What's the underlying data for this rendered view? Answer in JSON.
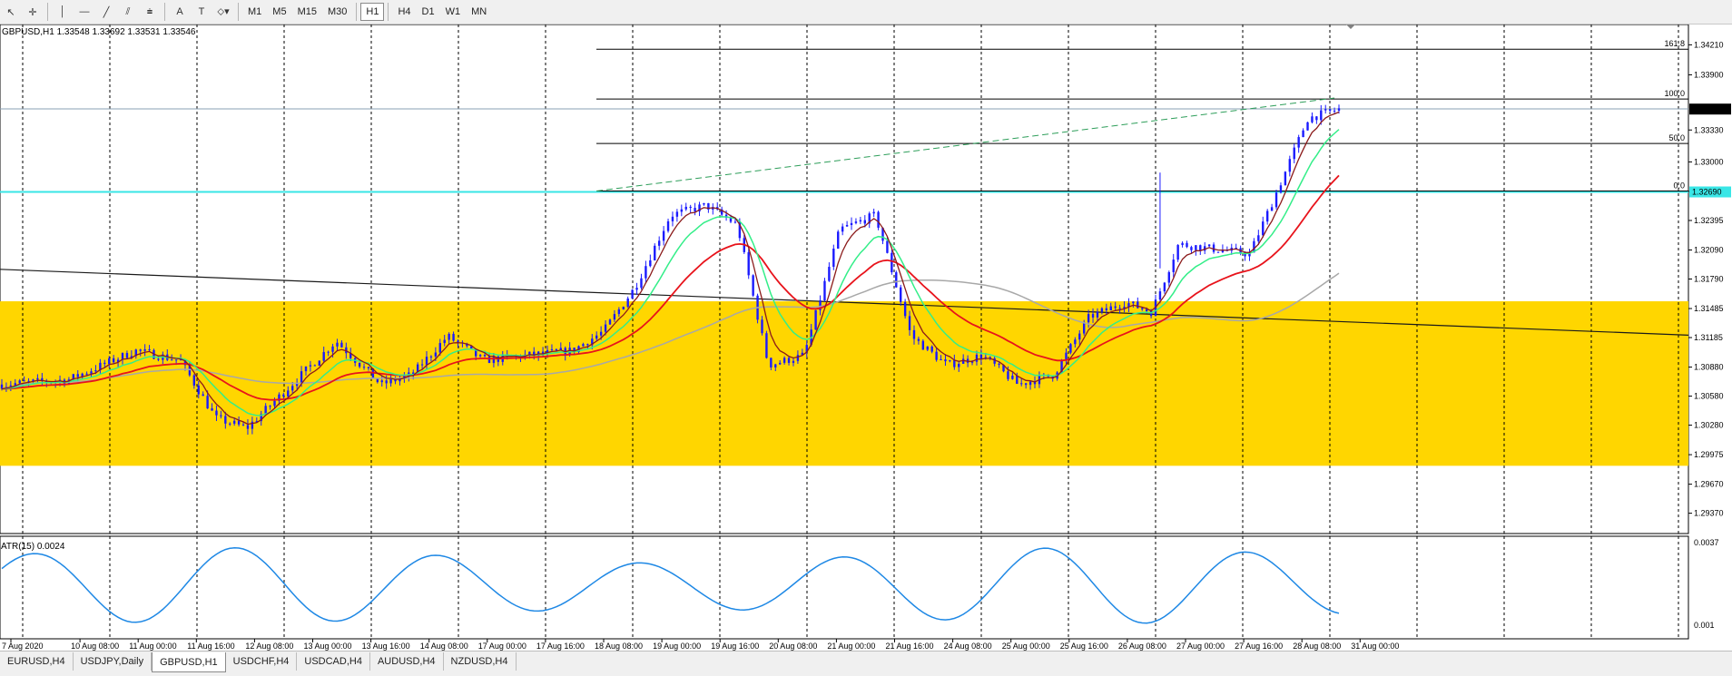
{
  "toolbar": {
    "tools": [
      {
        "name": "cursor-icon",
        "glyph": "↖"
      },
      {
        "name": "crosshair-icon",
        "glyph": "✛"
      },
      {
        "name": "vertical-line-icon",
        "glyph": "│"
      },
      {
        "name": "horizontal-line-icon",
        "glyph": "—"
      },
      {
        "name": "trendline-icon",
        "glyph": "╱"
      },
      {
        "name": "channel-icon",
        "glyph": "⫽"
      },
      {
        "name": "fibonacci-icon",
        "glyph": "⩧"
      },
      {
        "name": "text-icon",
        "glyph": "A"
      },
      {
        "name": "text-label-icon",
        "glyph": "T"
      },
      {
        "name": "shapes-icon",
        "glyph": "⬦▾"
      }
    ],
    "timeframes": [
      "M1",
      "M5",
      "M15",
      "M30",
      "H1",
      "H4",
      "D1",
      "W1",
      "MN"
    ],
    "active_timeframe": "H1"
  },
  "chart": {
    "symbol_header": "GBPUSD,H1  1.33548 1.33692 1.33531 1.33546",
    "price_ticks": [
      "1.34210",
      "1.33900",
      "1.33330",
      "1.33000",
      "1.32695",
      "1.32395",
      "1.32090",
      "1.31790",
      "1.31485",
      "1.31185",
      "1.30880",
      "1.30580",
      "1.30280",
      "1.29975",
      "1.29670",
      "1.29370"
    ],
    "current_price": "1.33546",
    "cyan_level_price": "1.32690",
    "fib_levels": [
      "161.8",
      "100.0",
      "50.0",
      "0.0"
    ],
    "time_labels": [
      "7 Aug 2020",
      "10 Aug 08:00",
      "11 Aug 00:00",
      "11 Aug 16:00",
      "12 Aug 08:00",
      "13 Aug 00:00",
      "13 Aug 16:00",
      "14 Aug 08:00",
      "17 Aug 00:00",
      "17 Aug 16:00",
      "18 Aug 08:00",
      "19 Aug 00:00",
      "19 Aug 16:00",
      "20 Aug 08:00",
      "21 Aug 00:00",
      "21 Aug 16:00",
      "24 Aug 08:00",
      "25 Aug 00:00",
      "25 Aug 16:00",
      "26 Aug 08:00",
      "27 Aug 00:00",
      "27 Aug 16:00",
      "28 Aug 08:00",
      "31 Aug 00:00"
    ],
    "colors": {
      "zone": "#ffd600",
      "candle": "#1a1aff",
      "ma_fast": "#8b1a1a",
      "ma_mid": "#33ee88",
      "ma_slow": "#e8131b",
      "ma_long": "#a8a8a8",
      "cyan_level": "#39e6e6",
      "atr": "#1e88e5",
      "fib": "#000000",
      "fib_trend": "#2e9e5a"
    }
  },
  "atr": {
    "label": "ATR(15) 0.0024",
    "ticks": [
      "0.0037",
      "0.001"
    ]
  },
  "tabs": [
    "EURUSD,H4",
    "USDJPY,Daily",
    "GBPUSD,H1",
    "USDCHF,H4",
    "USDCAD,H4",
    "AUDUSD,H4",
    "NZDUSD,H4"
  ],
  "active_tab": "GBPUSD,H1"
}
